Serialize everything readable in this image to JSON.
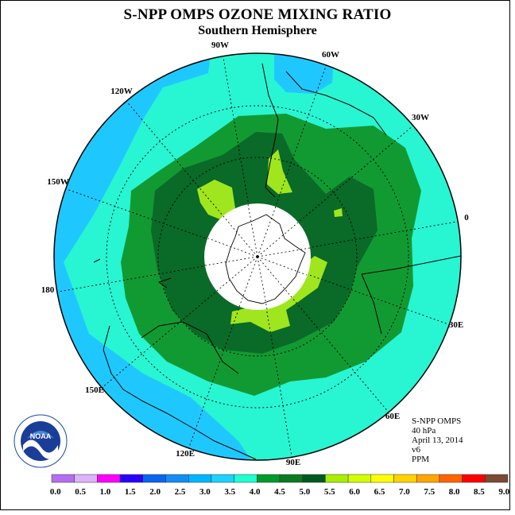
{
  "title": "S-NPP OMPS OZONE MIXING RATIO",
  "subtitle": "Southern Hemisphere",
  "logo_text": "NOAA",
  "meta": {
    "instrument": "S-NPP OMPS",
    "pressure": "40 hPa",
    "date": "April 13, 2014",
    "version": "v6",
    "units": "PPM"
  },
  "longitude_labels": [
    "90W",
    "60W",
    "30W",
    "0",
    "30E",
    "60E",
    "90E",
    "120E",
    "150E",
    "180",
    "150W",
    "120W"
  ],
  "legend": {
    "ticks": [
      "0.0",
      "0.5",
      "1.0",
      "1.5",
      "2.0",
      "2.5",
      "3.0",
      "3.5",
      "4.0",
      "4.5",
      "5.0",
      "5.5",
      "6.0",
      "6.5",
      "7.0",
      "7.5",
      "8.0",
      "8.5",
      "9.0"
    ],
    "colors": [
      "#b46ef0",
      "#dcb4f8",
      "#ff00ff",
      "#2a00ff",
      "#0a64f0",
      "#138cf5",
      "#00b4ff",
      "#1ed2ff",
      "#1effd2",
      "#009a2a",
      "#0a7a22",
      "#005a1e",
      "#aaee00",
      "#d2ff00",
      "#ffff00",
      "#ffd200",
      "#ffa500",
      "#ff6400",
      "#ff0000",
      "#7a4a32"
    ]
  },
  "colors": {
    "light_blue": "#1ec8ff",
    "cyan": "#28f5d2",
    "green_mid": "#129a32",
    "green_dark": "#0a6a28",
    "yellow_green": "#a0e61e"
  }
}
